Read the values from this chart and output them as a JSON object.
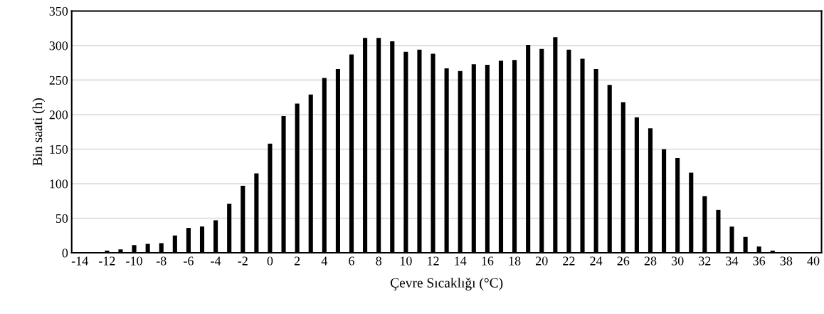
{
  "chart_data": {
    "type": "bar",
    "xlabel": "Çevre Sıcaklığı (°C)",
    "ylabel": "Bin saati (h)",
    "categories": [
      "-14",
      null,
      "-12",
      null,
      "-10",
      null,
      "-8",
      null,
      "-6",
      null,
      "-4",
      null,
      "-2",
      null,
      "0",
      null,
      "2",
      null,
      "4",
      null,
      "6",
      null,
      "8",
      null,
      "10",
      null,
      "12",
      null,
      "14",
      null,
      "16",
      null,
      "18",
      null,
      "20",
      null,
      "22",
      null,
      "24",
      null,
      "26",
      null,
      "28",
      null,
      "30",
      null,
      "32",
      null,
      "34",
      null,
      "36",
      null,
      "38",
      null,
      "40"
    ],
    "values": [
      0,
      0,
      3,
      5,
      11,
      13,
      14,
      25,
      36,
      38,
      47,
      71,
      97,
      115,
      158,
      198,
      216,
      229,
      253,
      266,
      287,
      311,
      311,
      306,
      291,
      294,
      288,
      267,
      263,
      273,
      272,
      278,
      279,
      301,
      295,
      312,
      294,
      281,
      266,
      243,
      218,
      196,
      180,
      150,
      137,
      116,
      82,
      62,
      38,
      23,
      9,
      3,
      0,
      0,
      0
    ],
    "color": "#000000",
    "ylim": [
      0,
      350
    ],
    "yticks": [
      0,
      50,
      100,
      150,
      200,
      250,
      300,
      350
    ],
    "grid": "y",
    "legend": false
  }
}
